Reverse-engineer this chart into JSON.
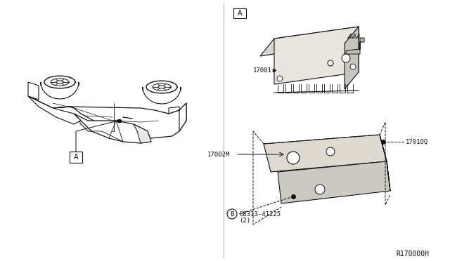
{
  "bg_color": "#ffffff",
  "line_color": "#333333",
  "dark_line": "#111111",
  "ref_code": "R170000H",
  "part_17001_label": "17001",
  "part_17002M_label": "17002M",
  "part_17010Q_label": "17010Q",
  "part_08313_label": "08313-41225",
  "part_08313_sub": "(2)"
}
